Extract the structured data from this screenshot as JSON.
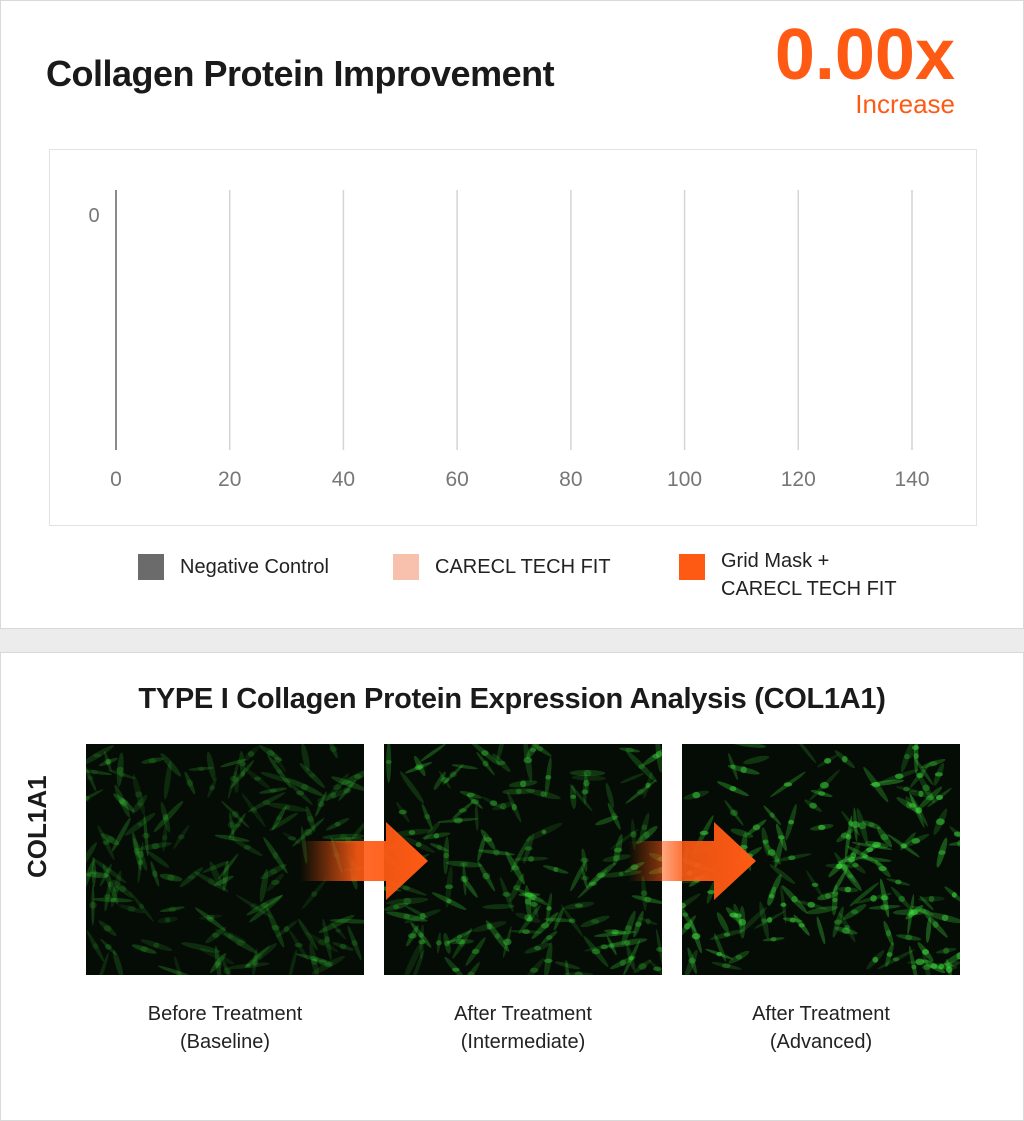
{
  "header": {
    "title": "Collagen Protein Improvement",
    "stat_value": "0.00x",
    "stat_label": "Increase"
  },
  "colors": {
    "accent": "#ff5a14",
    "negative_control": "#6b6b6b",
    "carecl_tech_fit": "#f7c1ad",
    "grid_mask_carecl": "#ff5a14",
    "fluorescence": "#3ddc3d"
  },
  "chart_data": {
    "type": "bar",
    "orientation": "horizontal",
    "categories": [
      "0"
    ],
    "series": [
      {
        "name": "Negative Control",
        "values": [
          0
        ]
      },
      {
        "name": "CARECL TECH FIT",
        "values": [
          0
        ]
      },
      {
        "name": "Grid Mask +\nCARECL TECH FIT",
        "values": [
          0
        ]
      }
    ],
    "xlim": [
      0,
      140
    ],
    "xticks": [
      0,
      20,
      40,
      60,
      80,
      100,
      120,
      140
    ],
    "grid": true,
    "legend_position": "bottom",
    "title": "",
    "xlabel": "",
    "ylabel": ""
  },
  "legend": [
    {
      "label": "Negative Control",
      "icon": "square-swatch"
    },
    {
      "label": "CARECL TECH FIT",
      "icon": "square-swatch"
    },
    {
      "label": "Grid Mask +\nCARECL TECH FIT",
      "icon": "square-swatch"
    }
  ],
  "analysis": {
    "title": "TYPE I Collagen Protein Expression Analysis (COL1A1)",
    "side_label": "COL1A1",
    "panels": [
      {
        "caption": "Before Treatment\n(Baseline)",
        "intensity": 0.35
      },
      {
        "caption": "After Treatment\n(Intermediate)",
        "intensity": 0.7
      },
      {
        "caption": "After Treatment\n(Advanced)",
        "intensity": 1.0
      }
    ],
    "arrow_icon": "right-arrow-icon"
  }
}
